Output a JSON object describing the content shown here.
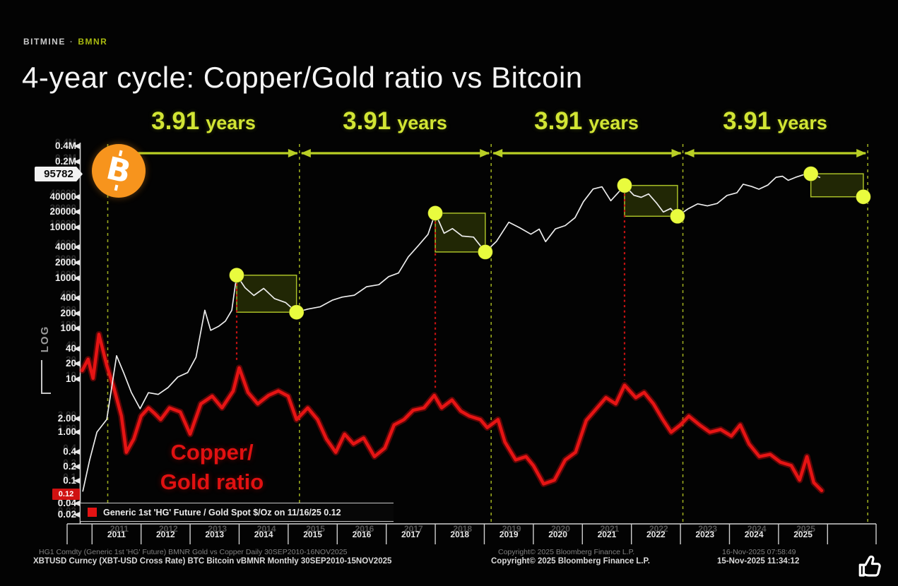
{
  "header": {
    "brand": "BITMINE",
    "separator": "·",
    "ticker": "BMNR",
    "title": "4-year cycle: Copper/Gold ratio vs Bitcoin"
  },
  "cycle_labels": [
    {
      "number": "3.91",
      "word": "years"
    },
    {
      "number": "3.91",
      "word": "years"
    },
    {
      "number": "3.91",
      "word": "years"
    },
    {
      "number": "3.91",
      "word": "years"
    }
  ],
  "annotations": {
    "copper_label_line1": "Copper/",
    "copper_label_line2": "Gold ratio",
    "bitcoin_logo_symbol": "B",
    "log_scale_label": "LOG"
  },
  "legend": {
    "swatch_color": "#e41313",
    "text": "Generic 1st 'HG' Future / Gold Spot $/Oz on 11/16/25 0.12"
  },
  "footer": {
    "left_line1": "HG1 Comdty (Generic 1st 'HG' Future) BMNR Gold vs Copper Daily 30SEP2010-16NOV2025",
    "left_line2": "XBTUSD Curncy (XBT-USD Cross Rate) BTC Bitcoin vBMNR Monthly 30SEP2010-15NOV2025",
    "copyright_ghost": "Copyright© 2025 Bloomberg Finance L.P.",
    "copyright": "Copyright© 2025 Bloomberg Finance L.P.",
    "timestamp_ghost": "16-Nov-2025 07:58:49",
    "timestamp": "15-Nov-2025 11:34:12"
  },
  "colors": {
    "accent_yellow_green": "#d2e534",
    "arrow_green": "#b9cf25",
    "dashed_green": "#98a81e",
    "bitcoin_line": "#ececec",
    "copper_line": "#e61414",
    "dot_yellow": "#e9fb3e",
    "bitcoin_orange": "#f7941d",
    "badge_red": "#d01111",
    "badge_white": "#f2f2f2"
  },
  "chart_data": {
    "type": "line",
    "title": "4-year cycle: Copper/Gold ratio vs Bitcoin",
    "x_axis": {
      "years": [
        2011,
        2012,
        2013,
        2014,
        2015,
        2016,
        2017,
        2018,
        2019,
        2020,
        2021,
        2022,
        2023,
        2024,
        2025
      ],
      "range_years": [
        2010.78,
        2026.87
      ]
    },
    "y_axis_bitcoin": {
      "scale": "log",
      "tick_labels": [
        "0.4M",
        "0.2M",
        "40000",
        "20000",
        "10000",
        "4000",
        "2000",
        "1000",
        "400",
        "200",
        "100",
        "40",
        "20",
        "10"
      ],
      "tick_values": [
        400000,
        200000,
        40000,
        20000,
        10000,
        4000,
        2000,
        1000,
        400,
        200,
        100,
        40,
        20,
        10
      ],
      "current_price_badge": "95782",
      "range": [
        10,
        400000
      ]
    },
    "y_axis_copper_gold": {
      "scale": "log",
      "tick_labels": [
        "2.00",
        "1.00",
        "0.4",
        "0.2",
        "0.1",
        "0.04",
        "0.02"
      ],
      "current_value_badge": "0.12",
      "range": [
        0.02,
        2.0
      ]
    },
    "axis_scale_label": "LOG",
    "cycle_length_label": "3.91 years",
    "cycle_boundaries_years": [
      2011.32,
      2015.23,
      2019.14,
      2023.05,
      2026.82
    ],
    "markers": {
      "peaks": [
        [
          2013.95,
          1130
        ],
        [
          2018.0,
          19000
        ],
        [
          2021.86,
          67000
        ],
        [
          2025.66,
          114000
        ]
      ],
      "bottoms": [
        [
          2015.17,
          210
        ],
        [
          2019.02,
          3250
        ],
        [
          2022.94,
          16500
        ],
        [
          2026.73,
          40000
        ]
      ],
      "peak_drop_lines": 3
    },
    "series": [
      {
        "name": "BTC Bitcoin (XBT-USD Cross Rate)",
        "color": "#ececec",
        "points": [
          [
            2010.81,
            0.06
          ],
          [
            2010.95,
            0.25
          ],
          [
            2011.1,
            0.9
          ],
          [
            2011.3,
            1.6
          ],
          [
            2011.5,
            29
          ],
          [
            2011.65,
            13
          ],
          [
            2011.8,
            5.5
          ],
          [
            2011.98,
            2.6
          ],
          [
            2012.15,
            5.4
          ],
          [
            2012.35,
            5.0
          ],
          [
            2012.55,
            6.8
          ],
          [
            2012.75,
            11
          ],
          [
            2012.95,
            13.5
          ],
          [
            2013.12,
            27
          ],
          [
            2013.3,
            230
          ],
          [
            2013.42,
            92
          ],
          [
            2013.58,
            110
          ],
          [
            2013.72,
            140
          ],
          [
            2013.85,
            230
          ],
          [
            2013.95,
            1130
          ],
          [
            2014.12,
            640
          ],
          [
            2014.3,
            450
          ],
          [
            2014.5,
            620
          ],
          [
            2014.72,
            390
          ],
          [
            2014.95,
            325
          ],
          [
            2015.17,
            210
          ],
          [
            2015.4,
            242
          ],
          [
            2015.65,
            268
          ],
          [
            2015.9,
            362
          ],
          [
            2016.1,
            418
          ],
          [
            2016.35,
            455
          ],
          [
            2016.6,
            670
          ],
          [
            2016.85,
            735
          ],
          [
            2017.05,
            1060
          ],
          [
            2017.25,
            1250
          ],
          [
            2017.45,
            2600
          ],
          [
            2017.65,
            4300
          ],
          [
            2017.85,
            7200
          ],
          [
            2018.0,
            19000
          ],
          [
            2018.18,
            7600
          ],
          [
            2018.35,
            9400
          ],
          [
            2018.55,
            6700
          ],
          [
            2018.78,
            6400
          ],
          [
            2019.02,
            3250
          ],
          [
            2019.25,
            5300
          ],
          [
            2019.5,
            12600
          ],
          [
            2019.72,
            9800
          ],
          [
            2019.95,
            7300
          ],
          [
            2020.12,
            9200
          ],
          [
            2020.25,
            5200
          ],
          [
            2020.45,
            9300
          ],
          [
            2020.65,
            10800
          ],
          [
            2020.85,
            15500
          ],
          [
            2021.02,
            32000
          ],
          [
            2021.22,
            57000
          ],
          [
            2021.4,
            63000
          ],
          [
            2021.58,
            33500
          ],
          [
            2021.72,
            47000
          ],
          [
            2021.86,
            67000
          ],
          [
            2022.05,
            43000
          ],
          [
            2022.2,
            39000
          ],
          [
            2022.35,
            45500
          ],
          [
            2022.52,
            29500
          ],
          [
            2022.65,
            20000
          ],
          [
            2022.8,
            23500
          ],
          [
            2022.94,
            16500
          ],
          [
            2023.15,
            23000
          ],
          [
            2023.35,
            29000
          ],
          [
            2023.55,
            26500
          ],
          [
            2023.75,
            29500
          ],
          [
            2023.95,
            42500
          ],
          [
            2024.15,
            48000
          ],
          [
            2024.28,
            71000
          ],
          [
            2024.45,
            64000
          ],
          [
            2024.6,
            56500
          ],
          [
            2024.78,
            68000
          ],
          [
            2024.95,
            97000
          ],
          [
            2025.08,
            102000
          ],
          [
            2025.2,
            84500
          ],
          [
            2025.35,
            97000
          ],
          [
            2025.5,
            108500
          ],
          [
            2025.66,
            114000
          ],
          [
            2025.85,
            95782
          ]
        ]
      },
      {
        "name": "Copper/Gold ratio (Generic 1st 'HG' Future / Gold Spot $/Oz)",
        "color": "#e61414",
        "points": [
          [
            2010.8,
            0.252
          ],
          [
            2010.92,
            0.27
          ],
          [
            2011.02,
            0.24
          ],
          [
            2011.14,
            0.315
          ],
          [
            2011.3,
            0.26
          ],
          [
            2011.45,
            0.225
          ],
          [
            2011.6,
            0.19
          ],
          [
            2011.7,
            0.152
          ],
          [
            2011.85,
            0.165
          ],
          [
            2012.0,
            0.19
          ],
          [
            2012.15,
            0.2
          ],
          [
            2012.28,
            0.193
          ],
          [
            2012.4,
            0.186
          ],
          [
            2012.58,
            0.2
          ],
          [
            2012.8,
            0.195
          ],
          [
            2013.0,
            0.17
          ],
          [
            2013.22,
            0.205
          ],
          [
            2013.45,
            0.215
          ],
          [
            2013.65,
            0.2
          ],
          [
            2013.88,
            0.222
          ],
          [
            2014.0,
            0.256
          ],
          [
            2014.18,
            0.22
          ],
          [
            2014.38,
            0.205
          ],
          [
            2014.6,
            0.216
          ],
          [
            2014.8,
            0.222
          ],
          [
            2015.0,
            0.215
          ],
          [
            2015.17,
            0.186
          ],
          [
            2015.4,
            0.2
          ],
          [
            2015.6,
            0.186
          ],
          [
            2015.78,
            0.165
          ],
          [
            2015.97,
            0.152
          ],
          [
            2016.15,
            0.17
          ],
          [
            2016.33,
            0.16
          ],
          [
            2016.54,
            0.166
          ],
          [
            2016.76,
            0.148
          ],
          [
            2016.97,
            0.156
          ],
          [
            2017.16,
            0.18
          ],
          [
            2017.36,
            0.186
          ],
          [
            2017.55,
            0.197
          ],
          [
            2017.77,
            0.2
          ],
          [
            2017.98,
            0.216
          ],
          [
            2018.13,
            0.2
          ],
          [
            2018.34,
            0.21
          ],
          [
            2018.52,
            0.196
          ],
          [
            2018.7,
            0.19
          ],
          [
            2018.92,
            0.186
          ],
          [
            2019.06,
            0.177
          ],
          [
            2019.28,
            0.186
          ],
          [
            2019.42,
            0.162
          ],
          [
            2019.64,
            0.145
          ],
          [
            2019.85,
            0.148
          ],
          [
            2020.0,
            0.14
          ],
          [
            2020.21,
            0.125
          ],
          [
            2020.43,
            0.128
          ],
          [
            2020.65,
            0.145
          ],
          [
            2020.86,
            0.152
          ],
          [
            2021.08,
            0.185
          ],
          [
            2021.3,
            0.2
          ],
          [
            2021.48,
            0.213
          ],
          [
            2021.68,
            0.205
          ],
          [
            2021.86,
            0.23
          ],
          [
            2022.09,
            0.213
          ],
          [
            2022.26,
            0.22
          ],
          [
            2022.45,
            0.205
          ],
          [
            2022.64,
            0.186
          ],
          [
            2022.81,
            0.172
          ],
          [
            2023.0,
            0.18
          ],
          [
            2023.17,
            0.19
          ],
          [
            2023.39,
            0.18
          ],
          [
            2023.6,
            0.172
          ],
          [
            2023.82,
            0.175
          ],
          [
            2024.04,
            0.168
          ],
          [
            2024.22,
            0.18
          ],
          [
            2024.4,
            0.16
          ],
          [
            2024.61,
            0.148
          ],
          [
            2024.83,
            0.15
          ],
          [
            2025.04,
            0.143
          ],
          [
            2025.26,
            0.14
          ],
          [
            2025.43,
            0.128
          ],
          [
            2025.58,
            0.148
          ],
          [
            2025.72,
            0.126
          ],
          [
            2025.88,
            0.12
          ]
        ]
      }
    ]
  }
}
